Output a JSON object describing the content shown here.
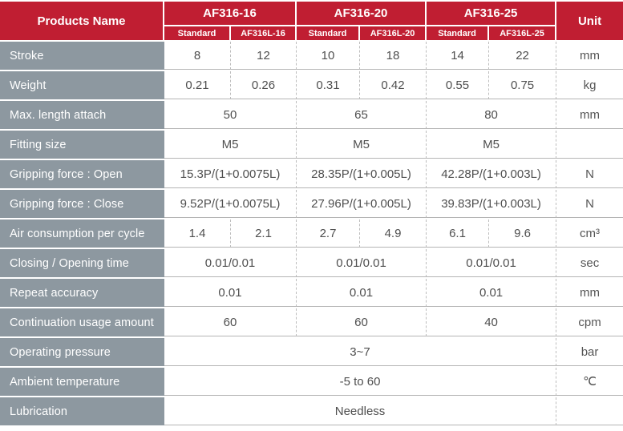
{
  "table": {
    "products_name_label": "Products Name",
    "unit_label": "Unit",
    "colors": {
      "header_red": "#C01E32",
      "label_gray": "#8D98A0",
      "body_text": "#4f4f4f",
      "grid_solid": "#b5b5b5",
      "grid_dashed": "#bdbdbd"
    },
    "groups": [
      {
        "label": "AF316-16",
        "sub": [
          "Standard",
          "AF316L-16"
        ]
      },
      {
        "label": "AF316-20",
        "sub": [
          "Standard",
          "AF316L-20"
        ]
      },
      {
        "label": "AF316-25",
        "sub": [
          "Standard",
          "AF316L-25"
        ]
      }
    ],
    "rows": [
      {
        "label": "Stroke",
        "cells": [
          "8",
          "12",
          "10",
          "18",
          "14",
          "22"
        ],
        "unit": "mm"
      },
      {
        "label": "Weight",
        "cells": [
          "0.21",
          "0.26",
          "0.31",
          "0.42",
          "0.55",
          "0.75"
        ],
        "unit": "kg"
      },
      {
        "label": "Max. length attach",
        "cells": [
          "50",
          "65",
          "80"
        ],
        "unit": "mm"
      },
      {
        "label": "Fitting size",
        "cells": [
          "M5",
          "M5",
          "M5"
        ],
        "unit": ""
      },
      {
        "label": "Gripping force : Open",
        "cells": [
          "15.3P/(1+0.0075L)",
          "28.35P/(1+0.005L)",
          "42.28P/(1+0.003L)"
        ],
        "unit": "N"
      },
      {
        "label": "Gripping force : Close",
        "cells": [
          "9.52P/(1+0.0075L)",
          "27.96P/(1+0.005L)",
          "39.83P/(1+0.003L)"
        ],
        "unit": "N"
      },
      {
        "label": "Air consumption per cycle",
        "cells": [
          "1.4",
          "2.1",
          "2.7",
          "4.9",
          "6.1",
          "9.6"
        ],
        "unit": "cm³"
      },
      {
        "label": "Closing / Opening time",
        "cells": [
          "0.01/0.01",
          "0.01/0.01",
          "0.01/0.01"
        ],
        "unit": "sec"
      },
      {
        "label": "Repeat accuracy",
        "cells": [
          "0.01",
          "0.01",
          "0.01"
        ],
        "unit": "mm"
      },
      {
        "label": "Continuation usage amount",
        "cells": [
          "60",
          "60",
          "40"
        ],
        "unit": "cpm"
      },
      {
        "label": "Operating pressure",
        "cells": [
          "3~7"
        ],
        "unit": "bar"
      },
      {
        "label": "Ambient temperature",
        "cells": [
          "-5 to 60"
        ],
        "unit": "℃"
      },
      {
        "label": "Lubrication",
        "cells": [
          "Needless"
        ],
        "unit": ""
      }
    ]
  }
}
